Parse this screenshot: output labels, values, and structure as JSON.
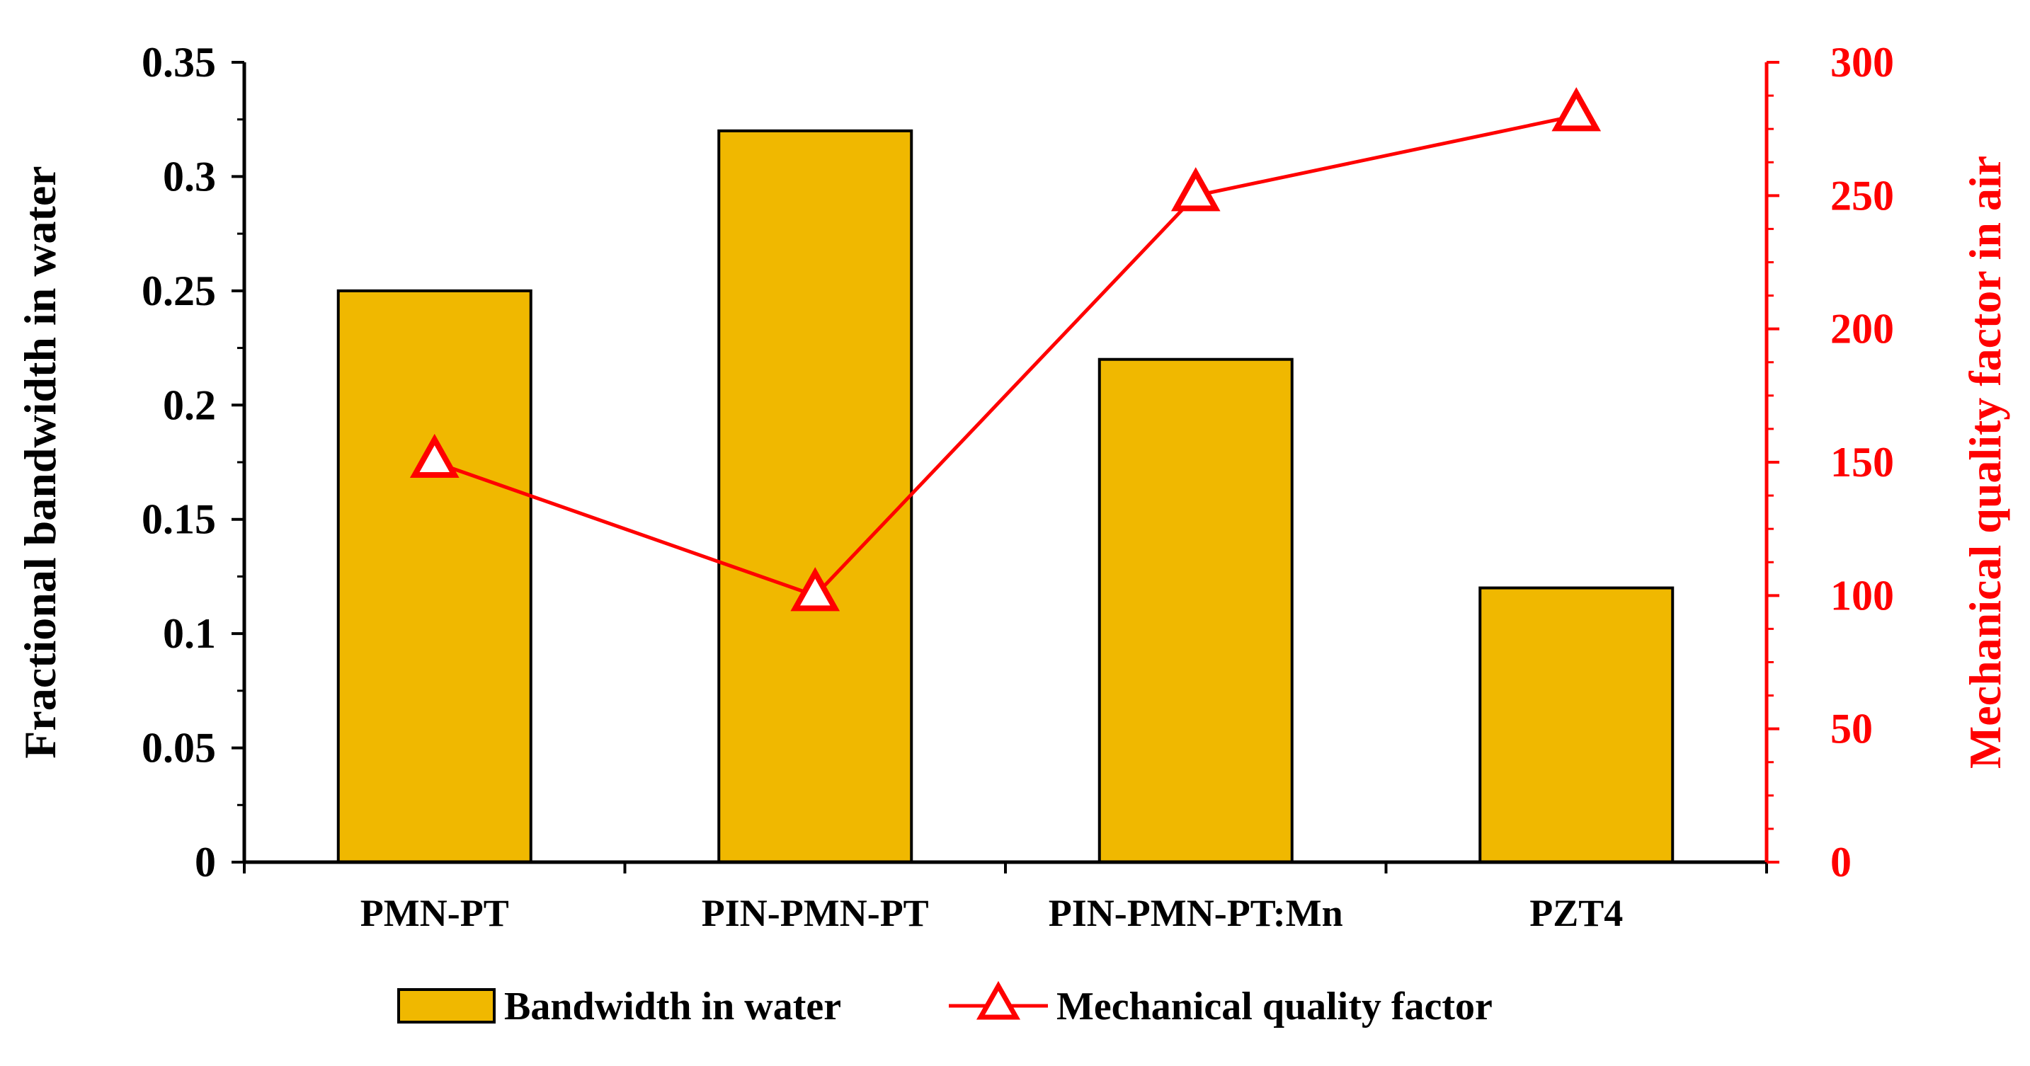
{
  "chart_data": {
    "type": "bar+line",
    "title": "",
    "categories": [
      "PMN-PT",
      "PIN-PMN-PT",
      "PIN-PMN-PT:Mn",
      "PZT4"
    ],
    "series": [
      {
        "name": "Bandwidth in water",
        "type": "bar",
        "axis": "left",
        "values": [
          0.25,
          0.32,
          0.22,
          0.12
        ]
      },
      {
        "name": "Mechanical quality factor",
        "type": "line",
        "axis": "right",
        "marker": "triangle",
        "values": [
          150,
          100,
          250,
          280
        ]
      }
    ],
    "y_left": {
      "label": "Fractional bandwidth in water",
      "lim": [
        0,
        0.35
      ],
      "ticks": [
        "0",
        "0.05",
        "0.1",
        "0.15",
        "0.2",
        "0.25",
        "0.3",
        "0.35"
      ],
      "tick_values": [
        0,
        0.05,
        0.1,
        0.15,
        0.2,
        0.25,
        0.3,
        0.35
      ]
    },
    "y_right": {
      "label": "Mechanical quality factor in air",
      "lim": [
        0,
        300
      ],
      "ticks": [
        "0",
        "50",
        "100",
        "150",
        "200",
        "250",
        "300"
      ],
      "tick_values": [
        0,
        50,
        100,
        150,
        200,
        250,
        300
      ]
    },
    "legend": {
      "position": "bottom",
      "bar_label": "Bandwidth in water",
      "line_label": "Mechanical quality factor"
    },
    "colors": {
      "bar_fill": "#F0B800",
      "bar_stroke": "#000000",
      "line": "#FF0000",
      "axis_left": "#000000",
      "axis_right": "#FF0000"
    },
    "grid": false
  }
}
